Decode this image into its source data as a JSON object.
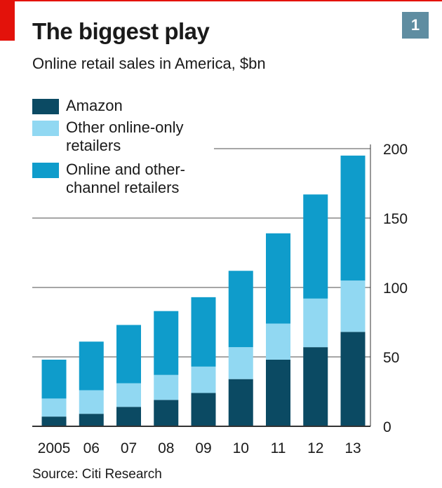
{
  "header": {
    "badge": "1",
    "title": "The biggest play",
    "subtitle": "Online retail sales in America, $bn",
    "source": "Source: Citi Research"
  },
  "colors": {
    "amazon": "#0b4a63",
    "other_online_only": "#91d8f2",
    "online_and_other_channel": "#0f9ccb",
    "gridline": "#a6a6a6",
    "axis": "#333333",
    "accent_red": "#e3120b",
    "badge_bg": "#5f8da1"
  },
  "chart_data": {
    "type": "bar",
    "stacked": true,
    "title": "The biggest play",
    "subtitle": "Online retail sales in America, $bn",
    "categories": [
      "2005",
      "06",
      "07",
      "08",
      "09",
      "10",
      "11",
      "12",
      "13"
    ],
    "series": [
      {
        "name": "Amazon",
        "color_key": "amazon",
        "values": [
          7,
          9,
          14,
          19,
          24,
          34,
          48,
          57,
          68
        ]
      },
      {
        "name": "Other online-only retailers",
        "color_key": "other_online_only",
        "values": [
          13,
          17,
          17,
          18,
          19,
          23,
          26,
          35,
          37
        ]
      },
      {
        "name": "Online and other-channel retailers",
        "color_key": "online_and_other_channel",
        "values": [
          28,
          35,
          42,
          46,
          50,
          55,
          65,
          75,
          90
        ]
      }
    ],
    "ylim": [
      0,
      200
    ],
    "yticks": [
      0,
      50,
      100,
      150,
      200
    ],
    "y_axis_side": "right",
    "grid": true,
    "legend_position": "top-left",
    "source": "Source: Citi Research"
  }
}
